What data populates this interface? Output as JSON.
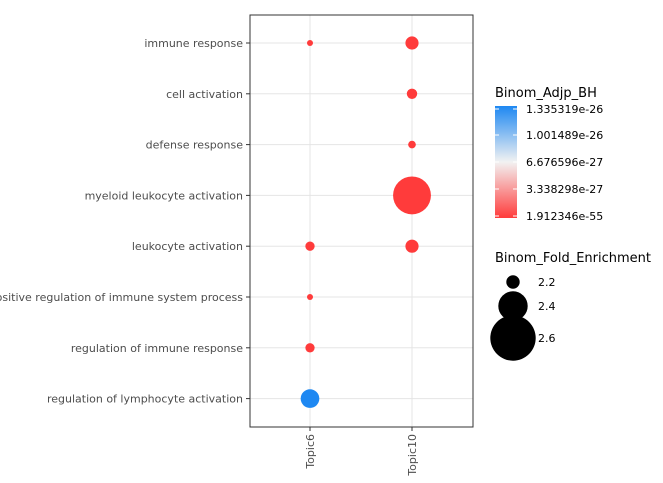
{
  "chart_data": {
    "type": "scatter",
    "categories_y": [
      "immune response",
      "cell activation",
      "defense response",
      "myeloid leukocyte activation",
      "leukocyte activation",
      "positive regulation of immune system process",
      "regulation of immune response",
      "regulation of lymphocyte activation"
    ],
    "categories_x": [
      "Topic6",
      "Topic10"
    ],
    "points": [
      {
        "x": "Topic6",
        "y": "immune response",
        "fold": 2.1,
        "color_value": "low"
      },
      {
        "x": "Topic10",
        "y": "immune response",
        "fold": 2.25,
        "color_value": "low"
      },
      {
        "x": "Topic10",
        "y": "cell activation",
        "fold": 2.2,
        "color_value": "low"
      },
      {
        "x": "Topic10",
        "y": "defense response",
        "fold": 2.15,
        "color_value": "low"
      },
      {
        "x": "Topic10",
        "y": "myeloid leukocyte activation",
        "fold": 2.7,
        "color_value": "low"
      },
      {
        "x": "Topic6",
        "y": "leukocyte activation",
        "fold": 2.18,
        "color_value": "low"
      },
      {
        "x": "Topic10",
        "y": "leukocyte activation",
        "fold": 2.25,
        "color_value": "low"
      },
      {
        "x": "Topic6",
        "y": "positive regulation of immune system process",
        "fold": 2.12,
        "color_value": "low"
      },
      {
        "x": "Topic6",
        "y": "regulation of immune response",
        "fold": 2.18,
        "color_value": "low"
      },
      {
        "x": "Topic6",
        "y": "regulation of lymphocyte activation",
        "fold": 2.35,
        "color_value": "high"
      }
    ],
    "color_legend": {
      "title": "Binom_Adjp_BH",
      "ticks": [
        "1.335319e-26",
        "1.001489e-26",
        "6.676596e-27",
        "3.338298e-27",
        "1.912346e-55"
      ],
      "high_color": "#1E88F2",
      "mid_color": "#F2F2F2",
      "low_color": "#FF3B3B"
    },
    "size_legend": {
      "title": "Binom_Fold_Enrichment",
      "items": [
        {
          "label": "2.2",
          "value": 2.2
        },
        {
          "label": "2.4",
          "value": 2.4
        },
        {
          "label": "2.6",
          "value": 2.6
        }
      ]
    },
    "grid": true
  }
}
